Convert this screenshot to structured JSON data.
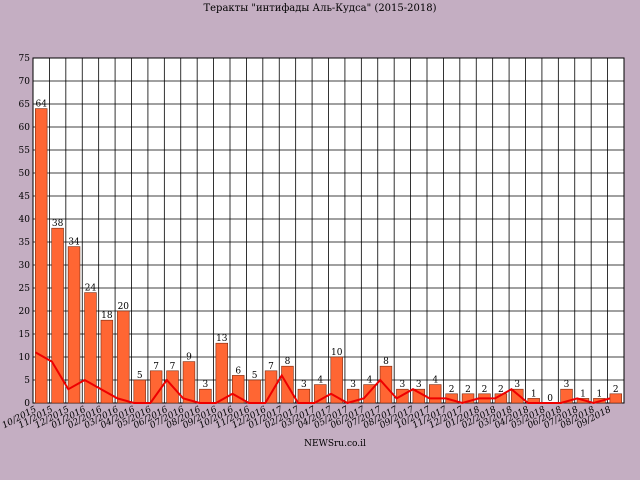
{
  "colors": {
    "background": "#c4aec2",
    "plot_background": "#ffffff",
    "bar_fill": "#ff6633",
    "bar_stroke": "#7a2a10",
    "line": "#ee0000",
    "grid": "#000000"
  },
  "footer": "NEWSru.co.il",
  "chart_data": {
    "type": "bar",
    "title": "Теракты \"интифады Аль-Кудса\" (2015-2018)",
    "xlabel": "",
    "ylabel": "",
    "ylim": [
      0,
      75
    ],
    "y_ticks": [
      0,
      5,
      10,
      15,
      20,
      25,
      30,
      35,
      40,
      45,
      50,
      55,
      60,
      65,
      70,
      75
    ],
    "grid": true,
    "legend": "none",
    "categories": [
      "10/2015",
      "11/2015",
      "12/2015",
      "01/2016",
      "02/2016",
      "03/2016",
      "04/2016",
      "05/2016",
      "06/2016",
      "07/2016",
      "08/2016",
      "09/2016",
      "10/2016",
      "11/2016",
      "12/2016",
      "01/2017",
      "02/2017",
      "03/2017",
      "04/2017",
      "05/2017",
      "06/2017",
      "07/2017",
      "08/2017",
      "09/2017",
      "10/2017",
      "11/2017",
      "12/2017",
      "01/2018",
      "02/2018",
      "03/2018",
      "04/2018",
      "05/2018",
      "06/2018",
      "07/2018",
      "08/2018",
      "09/2018"
    ],
    "series": [
      {
        "type": "bar",
        "values": [
          64,
          38,
          34,
          24,
          18,
          20,
          5,
          7,
          7,
          9,
          3,
          13,
          6,
          5,
          7,
          8,
          3,
          4,
          10,
          3,
          4,
          8,
          3,
          3,
          4,
          2,
          2,
          2,
          2,
          3,
          1,
          0,
          3,
          1,
          1,
          2
        ]
      },
      {
        "type": "line",
        "values": [
          11,
          9,
          3,
          5,
          3,
          1,
          0,
          0,
          5,
          1,
          0,
          0,
          2,
          0,
          0,
          6,
          0,
          0,
          2,
          0,
          1,
          5,
          1,
          3,
          1,
          1,
          0,
          1,
          1,
          3,
          0,
          0,
          0,
          1,
          0,
          1
        ]
      }
    ]
  }
}
